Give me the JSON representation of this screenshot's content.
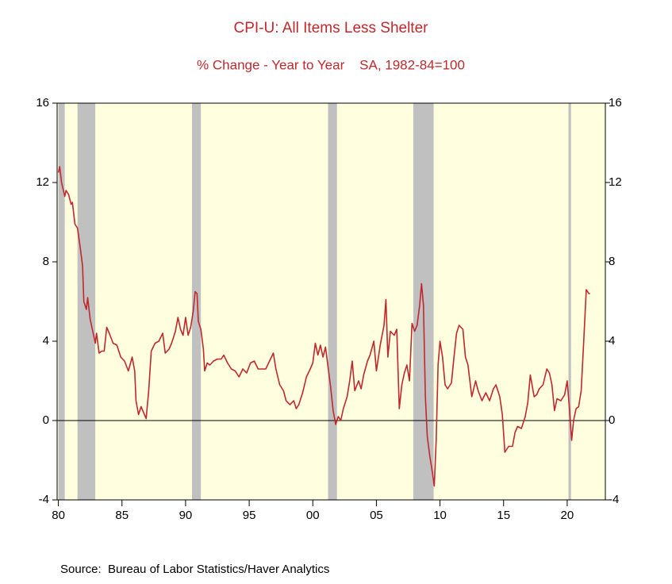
{
  "chart_data": {
    "type": "line",
    "title": "CPI-U: All Items Less Shelter",
    "subtitle": "% Change - Year to Year    SA, 1982-84=100",
    "source": "Source:  Bureau of Labor Statistics/Haver Analytics",
    "xlim": [
      1979.9,
      2023.0
    ],
    "xticks": [
      {
        "value": 1980,
        "label": "80"
      },
      {
        "value": 1985,
        "label": "85"
      },
      {
        "value": 1990,
        "label": "90"
      },
      {
        "value": 1995,
        "label": "95"
      },
      {
        "value": 2000,
        "label": "00"
      },
      {
        "value": 2005,
        "label": "05"
      },
      {
        "value": 2010,
        "label": "10"
      },
      {
        "value": 2015,
        "label": "15"
      },
      {
        "value": 2020,
        "label": "20"
      }
    ],
    "ylim": [
      -4,
      16
    ],
    "yticks": [
      -4,
      0,
      4,
      8,
      12,
      16
    ],
    "y2lim": [
      -4,
      16
    ],
    "y2ticks": [
      -4,
      0,
      4,
      8,
      12,
      16
    ],
    "recessions": [
      [
        1980.0,
        1980.5
      ],
      [
        1981.5,
        1982.9
      ],
      [
        1990.5,
        1991.2
      ],
      [
        2001.2,
        2001.9
      ],
      [
        2007.9,
        2009.5
      ],
      [
        2020.1,
        2020.3
      ]
    ],
    "background": "#ffffe0",
    "recession_color": "#c0c0c0",
    "series": [
      {
        "color": "#c0282d",
        "x": [
          1980.0,
          1980.1,
          1980.25,
          1980.5,
          1980.6,
          1980.8,
          1981.0,
          1981.1,
          1981.3,
          1981.5,
          1981.7,
          1981.9,
          1982.0,
          1982.2,
          1982.3,
          1982.5,
          1982.7,
          1982.9,
          1983.0,
          1983.2,
          1983.4,
          1983.6,
          1983.8,
          1984.0,
          1984.3,
          1984.6,
          1984.9,
          1985.2,
          1985.5,
          1985.8,
          1986.0,
          1986.1,
          1986.3,
          1986.5,
          1986.7,
          1986.9,
          1987.1,
          1987.3,
          1987.6,
          1987.9,
          1988.2,
          1988.4,
          1988.7,
          1988.9,
          1989.2,
          1989.4,
          1989.6,
          1989.8,
          1990.0,
          1990.2,
          1990.4,
          1990.6,
          1990.75,
          1990.9,
          1991.0,
          1991.2,
          1991.4,
          1991.5,
          1991.7,
          1991.9,
          1992.2,
          1992.5,
          1992.8,
          1993.0,
          1993.3,
          1993.6,
          1993.9,
          1994.2,
          1994.5,
          1994.8,
          1995.1,
          1995.4,
          1995.7,
          1996.0,
          1996.3,
          1996.6,
          1996.9,
          1997.1,
          1997.4,
          1997.7,
          1997.9,
          1998.2,
          1998.5,
          1998.7,
          1998.9,
          1999.2,
          1999.5,
          1999.8,
          2000.0,
          2000.2,
          2000.4,
          2000.6,
          2000.8,
          2001.0,
          2001.2,
          2001.4,
          2001.6,
          2001.8,
          2002.0,
          2002.2,
          2002.4,
          2002.7,
          2002.9,
          2003.1,
          2003.3,
          2003.6,
          2003.8,
          2004.0,
          2004.3,
          2004.5,
          2004.8,
          2005.0,
          2005.3,
          2005.6,
          2005.75,
          2005.9,
          2006.1,
          2006.4,
          2006.6,
          2006.8,
          2007.0,
          2007.2,
          2007.4,
          2007.6,
          2007.8,
          2008.0,
          2008.2,
          2008.4,
          2008.55,
          2008.7,
          2008.85,
          2009.0,
          2009.2,
          2009.4,
          2009.55,
          2009.7,
          2009.85,
          2010.0,
          2010.2,
          2010.4,
          2010.6,
          2010.9,
          2011.1,
          2011.3,
          2011.5,
          2011.8,
          2012.0,
          2012.2,
          2012.5,
          2012.8,
          2013.0,
          2013.3,
          2013.6,
          2013.9,
          2014.2,
          2014.4,
          2014.7,
          2014.9,
          2015.1,
          2015.4,
          2015.7,
          2015.9,
          2016.1,
          2016.4,
          2016.7,
          2016.9,
          2017.1,
          2017.4,
          2017.6,
          2017.8,
          2018.1,
          2018.4,
          2018.6,
          2018.8,
          2019.0,
          2019.2,
          2019.5,
          2019.8,
          2020.0,
          2020.2,
          2020.35,
          2020.5,
          2020.7,
          2020.9,
          2021.1,
          2021.3,
          2021.5,
          2021.7,
          2021.8
        ],
        "values": [
          12.5,
          12.8,
          12.0,
          11.3,
          11.6,
          11.4,
          10.9,
          11.0,
          9.9,
          9.7,
          8.8,
          7.8,
          6.0,
          5.6,
          6.2,
          5.1,
          4.5,
          3.9,
          4.4,
          3.4,
          3.5,
          3.5,
          4.7,
          4.4,
          3.9,
          3.8,
          3.2,
          3.0,
          2.5,
          3.2,
          2.5,
          1.0,
          0.3,
          0.7,
          0.4,
          0.1,
          1.5,
          3.5,
          3.9,
          4.0,
          4.4,
          3.4,
          3.6,
          3.9,
          4.5,
          5.2,
          4.6,
          4.3,
          5.2,
          4.3,
          4.7,
          5.5,
          6.5,
          6.4,
          5.0,
          4.6,
          3.6,
          2.5,
          2.9,
          2.8,
          3.0,
          3.1,
          3.1,
          3.3,
          2.9,
          2.6,
          2.5,
          2.2,
          2.6,
          2.4,
          2.9,
          3.0,
          2.6,
          2.6,
          2.6,
          3.0,
          3.4,
          2.6,
          1.8,
          1.5,
          1.0,
          0.8,
          1.0,
          0.6,
          0.8,
          1.4,
          2.2,
          2.6,
          2.9,
          3.9,
          3.3,
          3.8,
          3.2,
          3.7,
          2.7,
          1.7,
          0.5,
          -0.2,
          0.2,
          0.0,
          0.6,
          1.2,
          2.0,
          3.0,
          1.5,
          2.0,
          1.6,
          2.3,
          3.0,
          3.3,
          4.0,
          2.5,
          3.8,
          4.8,
          6.1,
          3.2,
          4.5,
          4.3,
          4.6,
          0.6,
          1.8,
          2.4,
          2.8,
          2.0,
          4.9,
          4.5,
          4.8,
          5.8,
          6.9,
          5.8,
          1.2,
          -0.8,
          -1.8,
          -2.6,
          -3.3,
          -1.0,
          2.8,
          4.0,
          3.2,
          1.8,
          1.6,
          1.9,
          3.2,
          4.4,
          4.8,
          4.6,
          3.2,
          2.8,
          1.2,
          2.0,
          1.5,
          1.0,
          1.4,
          1.0,
          1.6,
          1.8,
          1.2,
          0.3,
          -1.6,
          -1.3,
          -1.3,
          -0.6,
          -0.3,
          -0.4,
          0.2,
          0.9,
          2.3,
          1.2,
          1.3,
          1.6,
          1.8,
          2.6,
          2.4,
          1.8,
          0.5,
          1.1,
          1.0,
          1.3,
          2.0,
          0.4,
          -1.0,
          0.0,
          0.6,
          0.7,
          1.5,
          4.0,
          6.6,
          6.4,
          6.4
        ]
      }
    ]
  }
}
